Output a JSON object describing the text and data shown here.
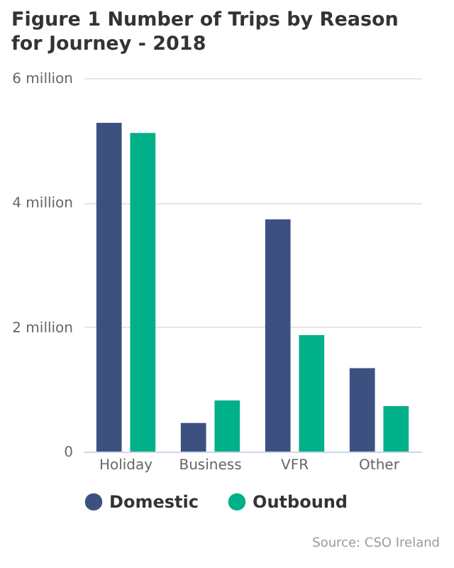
{
  "chart_data": {
    "type": "bar",
    "title": "Figure 1 Number of Trips by Reason for Journey - 2018",
    "categories": [
      "Holiday",
      "Business",
      "VFR",
      "Other"
    ],
    "series": [
      {
        "name": "Domestic",
        "color": "#3d5180",
        "values": [
          5.28,
          0.46,
          3.73,
          1.34
        ]
      },
      {
        "name": "Outbound",
        "color": "#00b088",
        "values": [
          5.12,
          0.82,
          1.87,
          0.73
        ]
      }
    ],
    "ylim": [
      0,
      6
    ],
    "yticks": [
      0,
      {
        "value": 2,
        "label": "2 million"
      },
      {
        "value": 4,
        "label": "4 million"
      },
      {
        "value": 6,
        "label": "6 million"
      }
    ],
    "grid": "y",
    "legend": "bottom",
    "annotations": [
      "Source: CSO Ireland"
    ]
  }
}
